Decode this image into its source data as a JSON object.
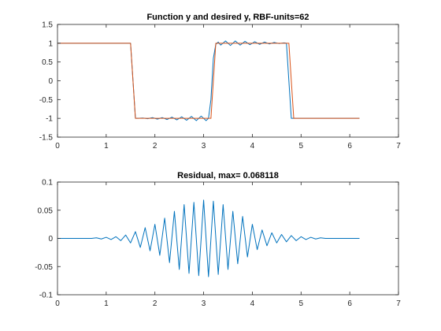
{
  "colors": {
    "blue": "#0072BD",
    "orange": "#D95319",
    "axis": "#262626",
    "background": "#ffffff"
  },
  "chart_data": [
    {
      "type": "line",
      "title": "Function y and desired y, RBF-units=62",
      "xlabel": "",
      "ylabel": "",
      "xlim": [
        0,
        7
      ],
      "ylim": [
        -1.5,
        1.5
      ],
      "xticks": [
        0,
        1,
        2,
        3,
        4,
        5,
        6,
        7
      ],
      "yticks": [
        -1.5,
        -1,
        -0.5,
        0,
        0.5,
        1,
        1.5
      ],
      "ytick_labels": [
        "-1.5",
        "-1",
        "-0.5",
        "0",
        "0.5",
        "1",
        "1.5"
      ],
      "grid": false,
      "legend": "none",
      "series": [
        {
          "color": "#0072BD",
          "x": [
            0.0,
            0.5,
            1.0,
            1.3,
            1.45,
            1.5,
            1.55,
            1.6,
            1.65,
            1.75,
            1.85,
            1.95,
            2.05,
            2.15,
            2.25,
            2.35,
            2.45,
            2.55,
            2.65,
            2.75,
            2.85,
            2.95,
            3.05,
            3.1,
            3.15,
            3.2,
            3.25,
            3.3,
            3.35,
            3.45,
            3.55,
            3.65,
            3.75,
            3.85,
            3.95,
            4.05,
            4.15,
            4.25,
            4.35,
            4.45,
            4.55,
            4.65,
            4.7,
            4.75,
            4.8,
            4.85,
            4.95,
            5.5,
            6.0,
            6.2
          ],
          "y": [
            1.0,
            1.0,
            1.0,
            1.0,
            1.0,
            1.0,
            0.0,
            -1.0,
            -1.0,
            -0.99,
            -1.01,
            -0.98,
            -1.02,
            -0.98,
            -1.03,
            -0.97,
            -1.04,
            -0.96,
            -1.05,
            -0.95,
            -1.06,
            -0.94,
            -1.06,
            -1.0,
            -0.5,
            0.6,
            0.97,
            1.03,
            0.95,
            1.06,
            0.94,
            1.06,
            0.95,
            1.05,
            0.96,
            1.04,
            0.97,
            1.03,
            0.98,
            1.02,
            0.99,
            1.01,
            1.0,
            0.0,
            -1.0,
            -1.0,
            -1.0,
            -1.0,
            -1.0,
            -1.0
          ]
        },
        {
          "color": "#D95319",
          "x": [
            0.0,
            1.5,
            1.6,
            3.15,
            3.25,
            4.75,
            4.85,
            6.2
          ],
          "y": [
            1.0,
            1.0,
            -1.0,
            -1.0,
            1.0,
            1.0,
            -1.0,
            -1.0
          ]
        }
      ]
    },
    {
      "type": "line",
      "title": "Residual, max= 0.068118",
      "xlabel": "",
      "ylabel": "",
      "xlim": [
        0,
        7
      ],
      "ylim": [
        -0.1,
        0.1
      ],
      "xticks": [
        0,
        1,
        2,
        3,
        4,
        5,
        6,
        7
      ],
      "yticks": [
        -0.1,
        -0.05,
        0,
        0.05,
        0.1
      ],
      "ytick_labels": [
        "-0.1",
        "-0.05",
        "0",
        "0.05",
        "0.1"
      ],
      "grid": false,
      "legend": "none",
      "series": [
        {
          "color": "#0072BD",
          "x": [
            0.0,
            0.7,
            0.8,
            0.9,
            1.0,
            1.1,
            1.2,
            1.3,
            1.4,
            1.5,
            1.6,
            1.7,
            1.8,
            1.9,
            2.0,
            2.1,
            2.2,
            2.3,
            2.4,
            2.5,
            2.6,
            2.7,
            2.8,
            2.9,
            3.0,
            3.1,
            3.2,
            3.3,
            3.4,
            3.5,
            3.6,
            3.7,
            3.8,
            3.9,
            4.0,
            4.1,
            4.2,
            4.3,
            4.4,
            4.5,
            4.6,
            4.7,
            4.8,
            4.9,
            5.0,
            5.1,
            5.2,
            5.3,
            5.4,
            5.5,
            6.2
          ],
          "y": [
            0.0,
            0.0,
            0.001,
            -0.001,
            0.002,
            -0.002,
            0.003,
            -0.004,
            0.006,
            -0.008,
            0.012,
            -0.016,
            0.019,
            -0.022,
            0.025,
            -0.03,
            0.036,
            -0.043,
            0.048,
            -0.055,
            0.06,
            -0.062,
            0.064,
            -0.066,
            0.068,
            -0.068,
            0.066,
            -0.064,
            0.06,
            -0.055,
            0.048,
            -0.045,
            0.039,
            -0.033,
            0.025,
            -0.02,
            0.015,
            -0.013,
            0.01,
            -0.008,
            0.007,
            -0.006,
            0.005,
            -0.004,
            0.003,
            -0.002,
            0.002,
            -0.001,
            0.001,
            0.0,
            0.0
          ]
        }
      ]
    }
  ]
}
